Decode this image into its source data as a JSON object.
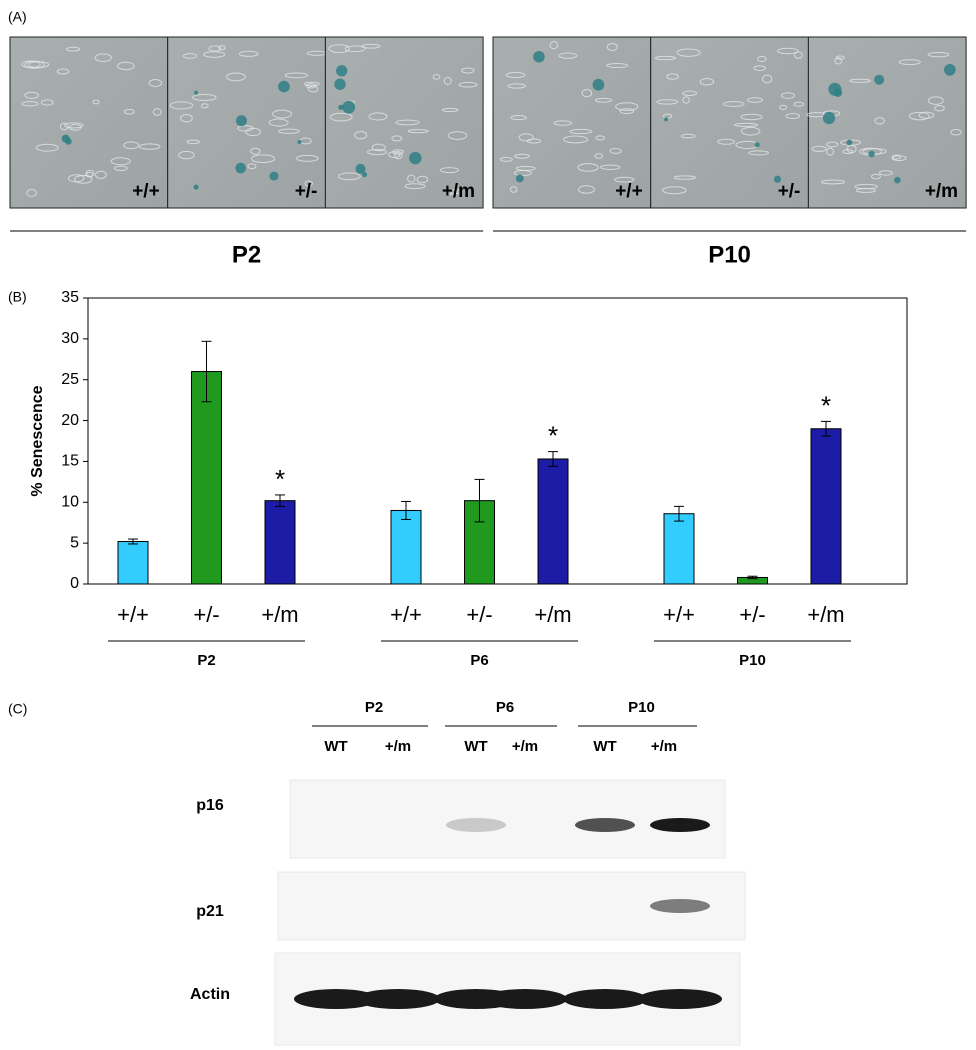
{
  "panel_a": {
    "label": "(A)",
    "groups": [
      {
        "name": "P2",
        "images": [
          "+/+",
          "+/-",
          "+/m"
        ]
      },
      {
        "name": "P10",
        "images": [
          "+/+",
          "+/-",
          "+/m"
        ]
      }
    ]
  },
  "chart_data": {
    "type": "bar",
    "label": "(B)",
    "ylabel": "% Senescence",
    "ylim": [
      0,
      35
    ],
    "yticks": [
      0,
      5,
      10,
      15,
      20,
      25,
      30,
      35
    ],
    "colors": [
      "#33ccff",
      "#1f9a1f",
      "#1c1ca6"
    ],
    "significance_label": "*",
    "groups": [
      {
        "name": "P2",
        "categories": [
          "+/+",
          "+/-",
          "+/m"
        ],
        "values": [
          5.2,
          26,
          10.2
        ],
        "errors": [
          0.3,
          3.7,
          0.7
        ],
        "significant": [
          false,
          false,
          true
        ]
      },
      {
        "name": "P6",
        "categories": [
          "+/+",
          "+/-",
          "+/m"
        ],
        "values": [
          9,
          10.2,
          15.3
        ],
        "errors": [
          1.1,
          2.6,
          0.9
        ],
        "significant": [
          false,
          false,
          true
        ]
      },
      {
        "name": "P10",
        "categories": [
          "+/+",
          "+/-",
          "+/m"
        ],
        "values": [
          8.6,
          0.8,
          19
        ],
        "errors": [
          0.9,
          0.15,
          0.9
        ],
        "significant": [
          false,
          false,
          true
        ]
      }
    ]
  },
  "panel_c": {
    "label": "(C)",
    "passages": [
      {
        "name": "P2",
        "lanes": [
          "WT",
          "+/m"
        ]
      },
      {
        "name": "P6",
        "lanes": [
          "WT",
          "+/m"
        ]
      },
      {
        "name": "P10",
        "lanes": [
          "WT",
          "+/m"
        ]
      }
    ],
    "rows": [
      "p16",
      "p21",
      "Actin"
    ]
  }
}
